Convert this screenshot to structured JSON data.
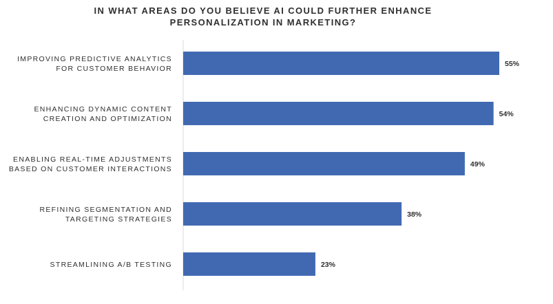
{
  "chart_data": {
    "type": "bar",
    "orientation": "horizontal",
    "title_lines": [
      "IN WHAT AREAS DO YOU BELIEVE AI COULD FURTHER ENHANCE",
      "PERSONALIZATION IN MARKETING?"
    ],
    "categories": [
      [
        "IMPROVING PREDICTIVE ANALYTICS",
        "FOR CUSTOMER BEHAVIOR"
      ],
      [
        "ENHANCING DYNAMIC CONTENT",
        "CREATION AND OPTIMIZATION"
      ],
      [
        "ENABLING REAL-TIME ADJUSTMENTS",
        "BASED ON CUSTOMER INTERACTIONS"
      ],
      [
        "REFINING SEGMENTATION AND",
        "TARGETING STRATEGIES"
      ],
      [
        "STREAMLINING A/B TESTING"
      ]
    ],
    "values": [
      55,
      54,
      49,
      38,
      23
    ],
    "value_labels": [
      "55%",
      "54%",
      "49%",
      "38%",
      "23%"
    ],
    "xlim": [
      0,
      60
    ],
    "grid": false,
    "legend": "none",
    "colors": {
      "bar": "#4169b2",
      "text": "#2f2f2f",
      "axis": "#d9d9d9"
    }
  }
}
